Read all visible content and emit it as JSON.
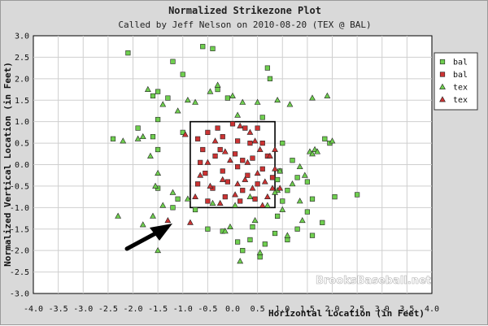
{
  "chart_data": {
    "type": "scatter",
    "title": "Normalized Strikezone Plot",
    "subtitle": "Called by Jeff Nelson on 2010-08-20 (TEX @ BAL)",
    "xlabel": "Horizontal Location (in Feet)",
    "ylabel": "Normalized Vertical Location (in Feet)",
    "xlim": [
      -4.0,
      4.0
    ],
    "ylim": [
      -3.0,
      3.0
    ],
    "xticks": [
      "-4.0",
      "-3.5",
      "-3.0",
      "-2.5",
      "-2.0",
      "-1.5",
      "-1.0",
      "-0.5",
      "0.0",
      "0.5",
      "1.0",
      "1.5",
      "2.0",
      "2.5",
      "3.0",
      "3.5",
      "4.0"
    ],
    "yticks": [
      "3.0",
      "2.5",
      "2.0",
      "1.5",
      "1.0",
      "0.5",
      "0.0",
      "-0.5",
      "-1.0",
      "-1.5",
      "-2.0",
      "-2.5",
      "-3.0"
    ],
    "legend_position": "top-right",
    "strike_zone": {
      "x": [
        -0.85,
        0.85
      ],
      "y": [
        -1.0,
        1.0
      ]
    },
    "watermark": "BrooksBaseball.net",
    "series": [
      {
        "name": "bal",
        "marker": "square",
        "color": "#6fcf4f",
        "points": [
          [
            -2.1,
            2.6
          ],
          [
            -1.2,
            2.4
          ],
          [
            -0.6,
            2.75
          ],
          [
            -0.4,
            2.7
          ],
          [
            -1.0,
            2.1
          ],
          [
            -1.5,
            1.7
          ],
          [
            -1.6,
            1.6
          ],
          [
            -1.3,
            1.55
          ],
          [
            -0.3,
            1.75
          ],
          [
            -0.1,
            1.55
          ],
          [
            0.7,
            2.25
          ],
          [
            0.75,
            2.0
          ],
          [
            -1.5,
            1.05
          ],
          [
            -1.9,
            0.85
          ],
          [
            -1.6,
            0.65
          ],
          [
            -2.4,
            0.6
          ],
          [
            -1.5,
            0.35
          ],
          [
            -1.0,
            0.75
          ],
          [
            1.0,
            0.5
          ],
          [
            1.2,
            0.1
          ],
          [
            1.3,
            -0.3
          ],
          [
            1.5,
            -0.4
          ],
          [
            1.1,
            -0.6
          ],
          [
            1.6,
            -0.8
          ],
          [
            1.5,
            -1.1
          ],
          [
            1.8,
            -1.35
          ],
          [
            2.05,
            -0.75
          ],
          [
            2.5,
            -0.7
          ],
          [
            1.0,
            -0.85
          ],
          [
            0.9,
            -1.2
          ],
          [
            0.85,
            -1.6
          ],
          [
            0.4,
            -1.45
          ],
          [
            0.65,
            -1.85
          ],
          [
            0.55,
            -2.15
          ],
          [
            0.35,
            -1.75
          ],
          [
            0.2,
            -2.0
          ],
          [
            0.1,
            -1.8
          ],
          [
            -0.2,
            -1.55
          ],
          [
            -0.5,
            -1.5
          ],
          [
            1.1,
            -1.75
          ],
          [
            1.6,
            -1.65
          ],
          [
            1.3,
            -1.5
          ],
          [
            -1.5,
            -0.55
          ],
          [
            -1.1,
            -0.8
          ],
          [
            -1.2,
            -1.0
          ],
          [
            0.9,
            -0.35
          ],
          [
            0.95,
            -0.15
          ],
          [
            1.85,
            0.6
          ],
          [
            1.95,
            0.5
          ],
          [
            0.6,
            1.1
          ],
          [
            -0.75,
            -1.05
          ]
        ]
      },
      {
        "name": "bal",
        "marker": "square",
        "color": "#cc3333",
        "points": [
          [
            -0.7,
            0.6
          ],
          [
            -0.5,
            0.75
          ],
          [
            -0.3,
            0.85
          ],
          [
            0.0,
            0.95
          ],
          [
            0.25,
            0.85
          ],
          [
            0.5,
            0.85
          ],
          [
            -0.6,
            0.35
          ],
          [
            -0.2,
            0.65
          ],
          [
            0.1,
            0.55
          ],
          [
            0.35,
            0.5
          ],
          [
            0.6,
            0.5
          ],
          [
            -0.65,
            0.05
          ],
          [
            -0.35,
            0.2
          ],
          [
            0.05,
            0.25
          ],
          [
            0.4,
            0.15
          ],
          [
            0.7,
            0.2
          ],
          [
            -0.55,
            -0.2
          ],
          [
            -0.2,
            -0.15
          ],
          [
            0.1,
            -0.05
          ],
          [
            0.3,
            -0.25
          ],
          [
            0.6,
            -0.1
          ],
          [
            -0.7,
            -0.45
          ],
          [
            -0.4,
            -0.55
          ],
          [
            -0.1,
            -0.4
          ],
          [
            0.2,
            -0.6
          ],
          [
            0.5,
            -0.45
          ],
          [
            -0.5,
            -0.85
          ],
          [
            -0.15,
            -0.75
          ],
          [
            0.15,
            -0.85
          ],
          [
            0.45,
            -0.8
          ],
          [
            -0.25,
            0.35
          ],
          [
            0.2,
            0.1
          ],
          [
            0.8,
            -0.3
          ]
        ]
      },
      {
        "name": "tex",
        "marker": "triangle",
        "color": "#6fcf4f",
        "points": [
          [
            -1.7,
            1.75
          ],
          [
            -1.4,
            1.4
          ],
          [
            -1.1,
            1.25
          ],
          [
            -0.9,
            1.5
          ],
          [
            -0.75,
            1.45
          ],
          [
            -0.3,
            1.85
          ],
          [
            0.0,
            1.6
          ],
          [
            0.2,
            1.45
          ],
          [
            0.1,
            1.15
          ],
          [
            0.5,
            1.45
          ],
          [
            0.9,
            1.5
          ],
          [
            1.15,
            1.4
          ],
          [
            1.6,
            1.55
          ],
          [
            1.9,
            1.6
          ],
          [
            1.55,
            0.3
          ],
          [
            1.6,
            0.25
          ],
          [
            1.65,
            0.35
          ],
          [
            2.0,
            0.55
          ],
          [
            -1.9,
            0.6
          ],
          [
            -2.2,
            0.55
          ],
          [
            -1.8,
            0.65
          ],
          [
            -1.5,
            -0.2
          ],
          [
            -1.55,
            -0.5
          ],
          [
            -1.4,
            -0.95
          ],
          [
            -1.6,
            -1.2
          ],
          [
            -2.3,
            -1.2
          ],
          [
            -1.8,
            -1.4
          ],
          [
            -1.5,
            -2.0
          ],
          [
            -1.2,
            -0.65
          ],
          [
            -0.9,
            -0.8
          ],
          [
            0.9,
            -0.6
          ],
          [
            1.2,
            -0.45
          ],
          [
            1.35,
            -0.85
          ],
          [
            0.7,
            -0.95
          ],
          [
            0.45,
            -1.3
          ],
          [
            -0.15,
            -1.55
          ],
          [
            -0.05,
            -1.45
          ],
          [
            0.15,
            -2.25
          ],
          [
            0.55,
            -2.05
          ],
          [
            1.1,
            -1.65
          ],
          [
            1.4,
            -1.3
          ],
          [
            -0.4,
            -0.9
          ],
          [
            0.05,
            -0.95
          ],
          [
            0.35,
            -0.75
          ],
          [
            0.95,
            -0.15
          ],
          [
            1.35,
            -0.05
          ],
          [
            1.45,
            -0.25
          ],
          [
            1.7,
            0.3
          ],
          [
            1.0,
            -1.05
          ],
          [
            0.85,
            -0.65
          ],
          [
            -1.65,
            0.2
          ],
          [
            -0.45,
            1.7
          ]
        ]
      },
      {
        "name": "tex",
        "marker": "triangle",
        "color": "#cc3333",
        "points": [
          [
            -0.95,
            0.7
          ],
          [
            -1.3,
            -1.3
          ],
          [
            -0.85,
            -1.35
          ],
          [
            -0.75,
            -0.75
          ],
          [
            -0.45,
            -0.5
          ],
          [
            -0.25,
            -0.9
          ],
          [
            0.05,
            -0.7
          ],
          [
            0.4,
            -0.55
          ],
          [
            0.7,
            -0.75
          ],
          [
            0.8,
            -0.55
          ],
          [
            0.65,
            -0.4
          ],
          [
            0.95,
            -0.55
          ],
          [
            0.85,
            -0.1
          ],
          [
            0.55,
            0.35
          ],
          [
            0.35,
            0.75
          ],
          [
            0.15,
            0.9
          ],
          [
            -0.15,
            0.3
          ],
          [
            -0.05,
            0.1
          ],
          [
            0.25,
            -0.35
          ],
          [
            -0.5,
            0.05
          ],
          [
            -0.65,
            -0.25
          ],
          [
            0.5,
            -0.2
          ],
          [
            0.75,
            0.2
          ],
          [
            0.3,
            0.05
          ],
          [
            0.6,
            -0.95
          ],
          [
            -0.35,
            0.55
          ],
          [
            0.1,
            -0.45
          ],
          [
            0.45,
            0.55
          ],
          [
            0.85,
            0.35
          ],
          [
            -0.2,
            -0.35
          ]
        ]
      }
    ]
  }
}
